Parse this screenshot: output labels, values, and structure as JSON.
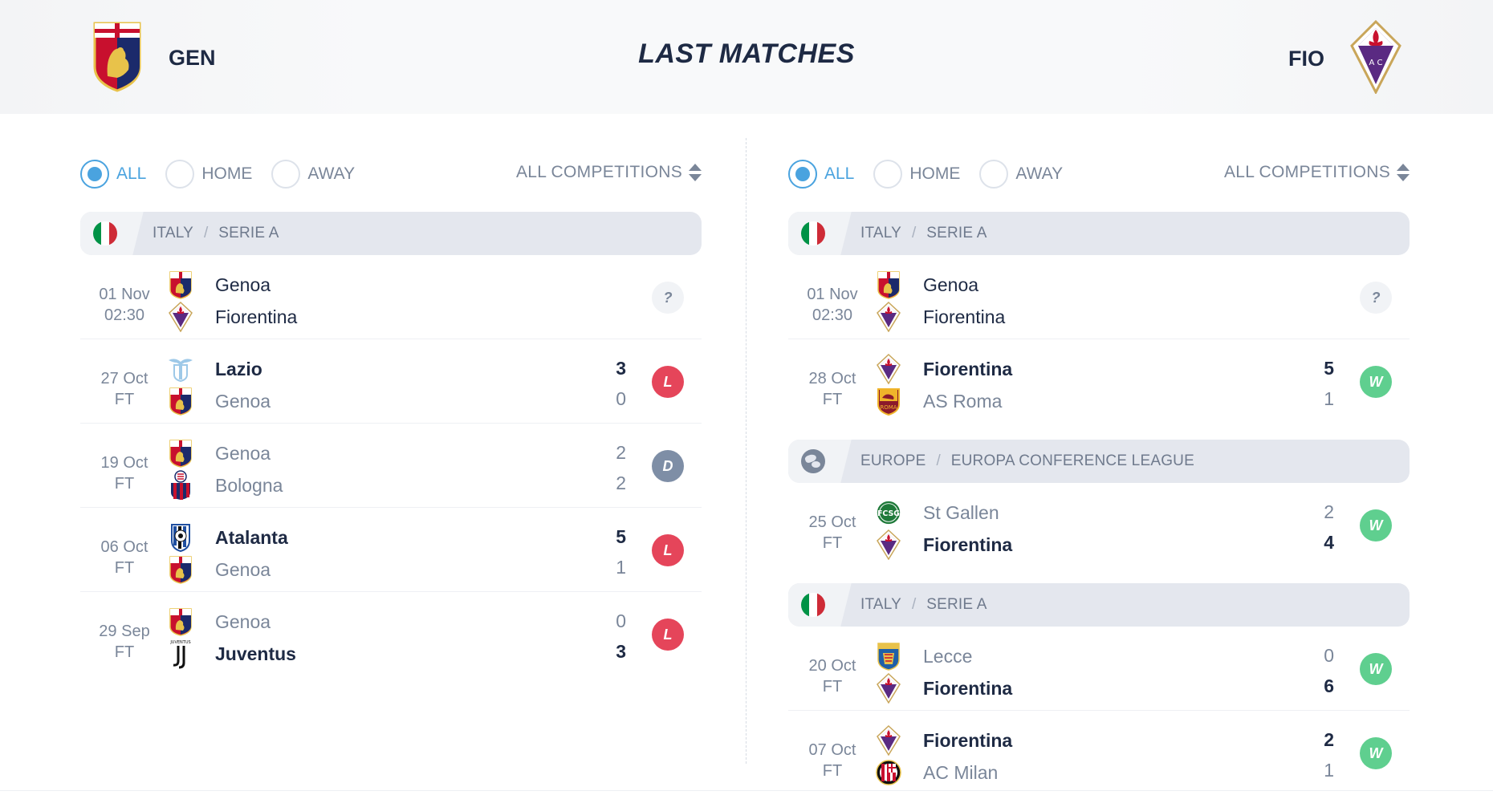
{
  "header": {
    "title": "LAST MATCHES",
    "home_abbr": "GEN",
    "away_abbr": "FIO"
  },
  "colors": {
    "accent": "#4aa3df",
    "loss": "#e5455a",
    "draw": "#7e8ea6",
    "win": "#5fcf8f",
    "text_dark": "#1e2a44",
    "text_muted": "#7a8699"
  },
  "icons": [
    "genoa-crest-icon",
    "fiorentina-crest-icon",
    "lazio-crest-icon",
    "bologna-crest-icon",
    "atalanta-crest-icon",
    "juventus-crest-icon",
    "roma-crest-icon",
    "st-gallen-crest-icon",
    "lecce-crest-icon",
    "milan-crest-icon",
    "italy-flag-icon",
    "europe-globe-icon",
    "sort-arrows-icon"
  ],
  "left": {
    "filters": {
      "all": "ALL",
      "home": "HOME",
      "away": "AWAY",
      "competitions": "ALL COMPETITIONS",
      "selected": "ALL"
    },
    "groups": [
      {
        "country": "ITALY",
        "league": "SERIE A",
        "icon": "italy-flag-icon",
        "matches": [
          {
            "date": "01 Nov",
            "time": "02:30",
            "home": "Genoa",
            "away": "Fiorentina",
            "home_crest": "genoa",
            "away_crest": "fiorentina",
            "home_score": "",
            "away_score": "",
            "result": "?",
            "winner": "none"
          },
          {
            "date": "27 Oct",
            "time": "FT",
            "home": "Lazio",
            "away": "Genoa",
            "home_crest": "lazio",
            "away_crest": "genoa",
            "home_score": "3",
            "away_score": "0",
            "result": "L",
            "winner": "home"
          },
          {
            "date": "19 Oct",
            "time": "FT",
            "home": "Genoa",
            "away": "Bologna",
            "home_crest": "genoa",
            "away_crest": "bologna",
            "home_score": "2",
            "away_score": "2",
            "result": "D",
            "winner": "draw"
          },
          {
            "date": "06 Oct",
            "time": "FT",
            "home": "Atalanta",
            "away": "Genoa",
            "home_crest": "atalanta",
            "away_crest": "genoa",
            "home_score": "5",
            "away_score": "1",
            "result": "L",
            "winner": "home"
          },
          {
            "date": "29 Sep",
            "time": "FT",
            "home": "Genoa",
            "away": "Juventus",
            "home_crest": "genoa",
            "away_crest": "juventus",
            "home_score": "0",
            "away_score": "3",
            "result": "L",
            "winner": "away"
          }
        ]
      }
    ]
  },
  "right": {
    "filters": {
      "all": "ALL",
      "home": "HOME",
      "away": "AWAY",
      "competitions": "ALL COMPETITIONS",
      "selected": "ALL"
    },
    "groups": [
      {
        "country": "ITALY",
        "league": "SERIE A",
        "icon": "italy-flag-icon",
        "matches": [
          {
            "date": "01 Nov",
            "time": "02:30",
            "home": "Genoa",
            "away": "Fiorentina",
            "home_crest": "genoa",
            "away_crest": "fiorentina",
            "home_score": "",
            "away_score": "",
            "result": "?",
            "winner": "none"
          },
          {
            "date": "28 Oct",
            "time": "FT",
            "home": "Fiorentina",
            "away": "AS Roma",
            "home_crest": "fiorentina",
            "away_crest": "roma",
            "home_score": "5",
            "away_score": "1",
            "result": "W",
            "winner": "home"
          }
        ]
      },
      {
        "country": "EUROPE",
        "league": "EUROPA CONFERENCE LEAGUE",
        "icon": "europe-globe-icon",
        "matches": [
          {
            "date": "25 Oct",
            "time": "FT",
            "home": "St Gallen",
            "away": "Fiorentina",
            "home_crest": "stgallen",
            "away_crest": "fiorentina",
            "home_score": "2",
            "away_score": "4",
            "result": "W",
            "winner": "away"
          }
        ]
      },
      {
        "country": "ITALY",
        "league": "SERIE A",
        "icon": "italy-flag-icon",
        "matches": [
          {
            "date": "20 Oct",
            "time": "FT",
            "home": "Lecce",
            "away": "Fiorentina",
            "home_crest": "lecce",
            "away_crest": "fiorentina",
            "home_score": "0",
            "away_score": "6",
            "result": "W",
            "winner": "away"
          },
          {
            "date": "07 Oct",
            "time": "FT",
            "home": "Fiorentina",
            "away": "AC Milan",
            "home_crest": "fiorentina",
            "away_crest": "milan",
            "home_score": "2",
            "away_score": "1",
            "result": "W",
            "winner": "home"
          }
        ]
      }
    ]
  }
}
